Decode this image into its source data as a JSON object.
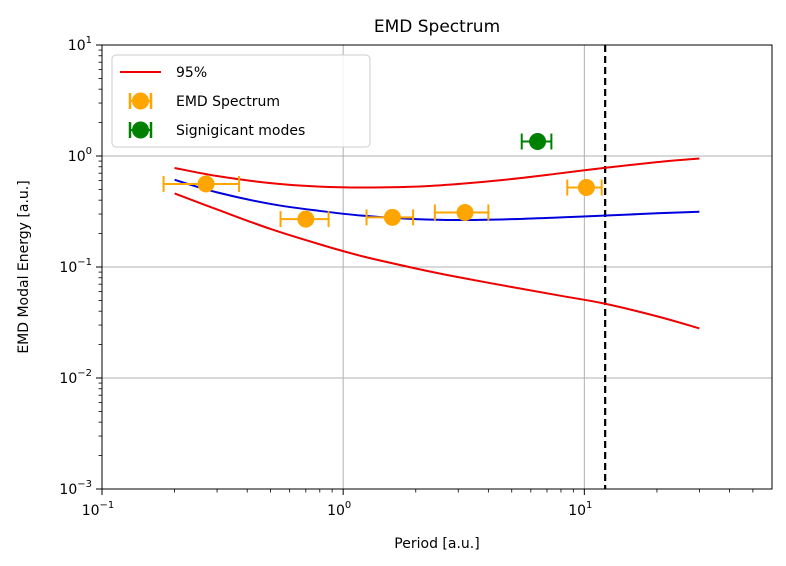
{
  "chart_data": {
    "type": "scatter",
    "title": "EMD Spectrum",
    "xlabel": "Period [a.u.]",
    "ylabel": "EMD Modal Energy [a.u.]",
    "xscale": "log",
    "yscale": "log",
    "xlim": [
      0.1,
      60
    ],
    "ylim": [
      0.001,
      10
    ],
    "x_ticks": [
      {
        "value": 0.1,
        "base": "10",
        "exp": "−1"
      },
      {
        "value": 1,
        "base": "10",
        "exp": "0"
      },
      {
        "value": 10,
        "base": "10",
        "exp": "1"
      }
    ],
    "y_ticks": [
      {
        "value": 0.001,
        "base": "10",
        "exp": "−3"
      },
      {
        "value": 0.01,
        "base": "10",
        "exp": "−2"
      },
      {
        "value": 0.1,
        "base": "10",
        "exp": "−1"
      },
      {
        "value": 1,
        "base": "10",
        "exp": "0"
      },
      {
        "value": 10,
        "base": "10",
        "exp": "1"
      }
    ],
    "grid": true,
    "legend_position": "top-left",
    "legend": [
      {
        "label": "95%",
        "kind": "line",
        "color": "#ee0000"
      },
      {
        "label": "EMD Spectrum",
        "kind": "errorbar",
        "color": "#ffa500"
      },
      {
        "label": "Signigicant modes",
        "kind": "errorbar",
        "color": "#008000"
      }
    ],
    "vline": {
      "x": 12.2,
      "style": "dashed",
      "color": "#000000"
    },
    "lines": [
      {
        "name": "95%",
        "color": "#ee0000",
        "x": [
          0.2,
          0.3,
          0.5,
          0.8,
          1.2,
          2,
          3,
          5,
          8,
          12,
          20,
          30
        ],
        "y": [
          0.78,
          0.66,
          0.57,
          0.53,
          0.52,
          0.53,
          0.56,
          0.62,
          0.7,
          0.78,
          0.88,
          0.95
        ]
      },
      {
        "color": "#0000dd",
        "x": [
          0.2,
          0.3,
          0.5,
          0.8,
          1.2,
          2,
          3,
          5,
          8,
          12,
          20,
          30
        ],
        "y": [
          0.61,
          0.47,
          0.37,
          0.32,
          0.29,
          0.27,
          0.265,
          0.27,
          0.28,
          0.29,
          0.305,
          0.315
        ]
      },
      {
        "color": "#ee0000",
        "x": [
          0.2,
          0.3,
          0.5,
          0.8,
          1.2,
          2,
          3,
          5,
          8,
          12,
          20,
          30
        ],
        "y": [
          0.46,
          0.33,
          0.22,
          0.16,
          0.125,
          0.097,
          0.081,
          0.066,
          0.055,
          0.047,
          0.036,
          0.028
        ]
      }
    ],
    "series": [
      {
        "name": "EMD Spectrum",
        "color": "#ffa500",
        "points": [
          {
            "x": 0.27,
            "y": 0.56,
            "xerr": [
              0.18,
              0.37
            ]
          },
          {
            "x": 0.7,
            "y": 0.27,
            "xerr": [
              0.55,
              0.87
            ]
          },
          {
            "x": 1.6,
            "y": 0.28,
            "xerr": [
              1.25,
              1.95
            ]
          },
          {
            "x": 3.2,
            "y": 0.31,
            "xerr": [
              2.4,
              4.0
            ]
          },
          {
            "x": 10.2,
            "y": 0.52,
            "xerr": [
              8.5,
              11.8
            ]
          }
        ]
      },
      {
        "name": "Signigicant modes",
        "color": "#008000",
        "points": [
          {
            "x": 6.4,
            "y": 1.35,
            "xerr": [
              5.5,
              7.3
            ]
          }
        ]
      }
    ]
  }
}
